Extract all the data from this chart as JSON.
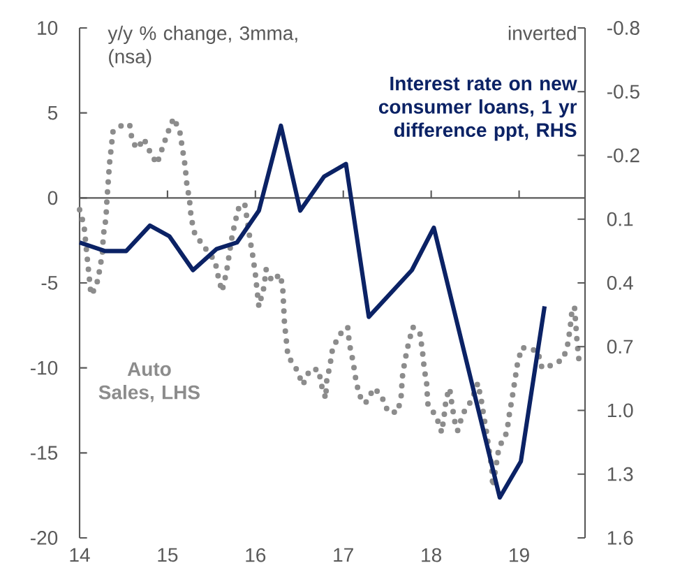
{
  "chart_data": {
    "type": "line",
    "ylabel": "y/y % change, 3mma, (nsa)",
    "y2label": "inverted",
    "xlim": [
      2014,
      2019.75
    ],
    "xticks": [
      {
        "value": 2014,
        "label": "14"
      },
      {
        "value": 2015,
        "label": "15"
      },
      {
        "value": 2016,
        "label": "16"
      },
      {
        "value": 2017,
        "label": "17"
      },
      {
        "value": 2018,
        "label": "18"
      },
      {
        "value": 2019,
        "label": "19"
      }
    ],
    "ylim": [
      -20,
      10
    ],
    "yticks": [
      -20,
      -15,
      -10,
      -5,
      0,
      5,
      10
    ],
    "y2lim": [
      1.6,
      -0.8
    ],
    "y2ticks": [
      -0.8,
      -0.5,
      -0.2,
      0.1,
      0.4,
      0.7,
      {
        "value": 1.0,
        "label": "1.0"
      },
      1.3,
      1.6
    ],
    "grid": false,
    "legend": false,
    "ref_lines": [
      {
        "axis": "y",
        "value": 0,
        "color": "#595959"
      }
    ],
    "series": [
      {
        "name": "Auto Sales, LHS",
        "color": "#8c8c8c",
        "line_style": "dotted",
        "x": [
          2014.0,
          2014.05,
          2014.09,
          2014.13,
          2014.19,
          2014.23,
          2014.26,
          2014.27,
          2014.3,
          2014.31,
          2014.34,
          2014.38,
          2014.49,
          2014.57,
          2014.6,
          2014.66,
          2014.73,
          2014.81,
          2014.88,
          2014.94,
          2015.0,
          2015.07,
          2015.14,
          2015.17,
          2015.2,
          2015.22,
          2015.25,
          2015.27,
          2015.31,
          2015.42,
          2015.54,
          2015.58,
          2015.62,
          2015.67,
          2015.7,
          2015.73,
          2015.77,
          2015.82,
          2015.88,
          2015.91,
          2015.94,
          2015.97,
          2016.0,
          2016.02,
          2016.04,
          2016.1,
          2016.12,
          2016.19,
          2016.28,
          2016.31,
          2016.32,
          2016.33,
          2016.35,
          2016.37,
          2016.47,
          2016.54,
          2016.62,
          2016.72,
          2016.75,
          2016.8,
          2016.81,
          2016.85,
          2016.88,
          2016.98,
          2017.05,
          2017.07,
          2017.11,
          2017.14,
          2017.18,
          2017.25,
          2017.35,
          2017.43,
          2017.51,
          2017.62,
          2017.66,
          2017.67,
          2017.7,
          2017.74,
          2017.79,
          2017.87,
          2017.9,
          2017.92,
          2017.95,
          2017.96,
          2018.06,
          2018.12,
          2018.15,
          2018.17,
          2018.21,
          2018.24,
          2018.27,
          2018.3,
          2018.36,
          2018.46,
          2018.53,
          2018.57,
          2018.6,
          2018.63,
          2018.66,
          2018.69,
          2018.7,
          2018.74,
          2018.77,
          2018.86,
          2018.89,
          2018.92,
          2018.95,
          2018.98,
          2019.03,
          2019.21,
          2019.26,
          2019.34,
          2019.5,
          2019.55,
          2019.58,
          2019.6,
          2019.63,
          2019.66,
          2019.68
        ],
        "values": [
          -0.7,
          -1.6,
          -3.7,
          -5.7,
          -5.2,
          -4.2,
          -3.2,
          -2.2,
          -1.2,
          -0.2,
          2.0,
          3.9,
          4.3,
          4.3,
          3.3,
          2.9,
          3.5,
          2.6,
          2.0,
          2.9,
          3.8,
          4.7,
          3.9,
          2.9,
          1.9,
          0.8,
          -0.1,
          -1.2,
          -2.1,
          -2.9,
          -3.7,
          -4.7,
          -5.5,
          -4.4,
          -3.4,
          -2.4,
          -1.4,
          -0.4,
          -0.4,
          -1.4,
          -2.5,
          -3.4,
          -4.5,
          -5.5,
          -6.4,
          -5.2,
          -4.2,
          -4.9,
          -4.5,
          -5.2,
          -6.2,
          -7.3,
          -8.3,
          -9.3,
          -10.1,
          -11.0,
          -10.1,
          -10.1,
          -11.0,
          -11.8,
          -10.8,
          -9.8,
          -8.8,
          -7.9,
          -7.6,
          -8.6,
          -9.6,
          -10.6,
          -11.6,
          -12.1,
          -11.2,
          -11.6,
          -12.6,
          -12.6,
          -11.6,
          -10.6,
          -9.6,
          -8.6,
          -7.6,
          -7.9,
          -9.0,
          -10.0,
          -11.0,
          -12.1,
          -12.9,
          -13.8,
          -12.7,
          -11.8,
          -11.2,
          -12.3,
          -13.2,
          -13.7,
          -12.7,
          -11.9,
          -10.9,
          -11.9,
          -12.9,
          -13.8,
          -14.9,
          -15.9,
          -17.0,
          -15.7,
          -14.7,
          -13.8,
          -12.7,
          -11.8,
          -10.8,
          -9.8,
          -8.8,
          -9.0,
          -10.0,
          -9.9,
          -9.5,
          -8.7,
          -7.7,
          -6.7,
          -6.4,
          -8.5,
          -9.5
        ]
      },
      {
        "name": "Interest rate on new consumer loans, 1 yr difference ppt, RHS",
        "color": "#0b2265",
        "axis": "y2",
        "x": [
          2014.0,
          2014.29,
          2014.53,
          2014.8,
          2015.02,
          2015.29,
          2015.56,
          2015.79,
          2016.04,
          2016.29,
          2016.51,
          2016.78,
          2017.03,
          2017.29,
          2017.78,
          2018.03,
          2018.78,
          2019.02,
          2019.29
        ],
        "values": [
          0.21,
          0.25,
          0.25,
          0.13,
          0.18,
          0.34,
          0.24,
          0.21,
          0.06,
          -0.34,
          0.06,
          -0.1,
          -0.16,
          0.56,
          0.34,
          0.14,
          1.41,
          1.24,
          0.51
        ]
      }
    ]
  }
}
